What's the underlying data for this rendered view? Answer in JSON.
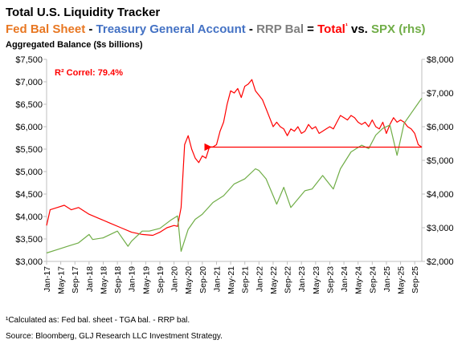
{
  "header": {
    "title": "Total U.S. Liquidity Tracker",
    "subtitle_segments": [
      {
        "text": "Fed Bal Sheet",
        "color": "#E87722"
      },
      {
        "text": " - ",
        "color": "#000000"
      },
      {
        "text": "Treasury General Account",
        "color": "#4472C4"
      },
      {
        "text": " - ",
        "color": "#000000"
      },
      {
        "text": "RRP Bal",
        "color": "#7F7F7F"
      },
      {
        "text": " = ",
        "color": "#000000"
      },
      {
        "text": "Total",
        "color": "#FF0000"
      },
      {
        "text": "¹",
        "color": "#FF0000"
      },
      {
        "text": " vs. ",
        "color": "#000000"
      },
      {
        "text": "SPX (rhs)",
        "color": "#70AD47"
      }
    ],
    "axis_caption": "Aggregated Balance ($s billions)"
  },
  "footnotes": {
    "calc": "¹Calculated as: Fed bal. sheet - TGA bal. - RRP bal.",
    "source": "Source: Bloomberg, GLJ Research LLC Investment Strategy."
  },
  "chart_data": {
    "type": "line",
    "x_tick_labels": [
      "Jan-17",
      "May-17",
      "Sep-17",
      "Jan-18",
      "May-18",
      "Sep-18",
      "Jan-19",
      "May-19",
      "Sep-19",
      "Jan-20",
      "May-20",
      "Sep-20",
      "Jan-21",
      "May-21",
      "Sep-21",
      "Jan-22",
      "May-22",
      "Sep-22",
      "Jan-23",
      "May-23",
      "Sep-23",
      "Jan-24",
      "May-24",
      "Sep-24",
      "Jan-25",
      "May-25",
      "Sep-25"
    ],
    "y_left": {
      "min": 3000,
      "max": 7500,
      "step": 500,
      "tick_labels": [
        "$3,000",
        "$3,500",
        "$4,000",
        "$4,500",
        "$5,000",
        "$5,500",
        "$6,000",
        "$6,500",
        "$7,000",
        "$7,500"
      ]
    },
    "y_right": {
      "min": 2000,
      "max": 8000,
      "step": 1000,
      "tick_labels": [
        "$2,000",
        "$3,000",
        "$4,000",
        "$5,000",
        "$6,000",
        "$7,000",
        "$8,000"
      ]
    },
    "annotation": {
      "text": "R² Correl: 79.4%",
      "color": "#FF0000"
    },
    "reference_arrow": {
      "from_date": "Nov-25",
      "to_date": "Nov-20",
      "y_left_value": 5545,
      "color": "#FF0000"
    },
    "series": [
      {
        "axis": "left",
        "color": "#FF0000",
        "points": [
          [
            "Jan-17",
            3800
          ],
          [
            "Feb-17",
            4150
          ],
          [
            "Apr-17",
            4200
          ],
          [
            "Jun-17",
            4250
          ],
          [
            "Aug-17",
            4150
          ],
          [
            "Oct-17",
            4200
          ],
          [
            "Jan-18",
            4050
          ],
          [
            "Apr-18",
            3950
          ],
          [
            "Jul-18",
            3850
          ],
          [
            "Oct-18",
            3750
          ],
          [
            "Jan-19",
            3650
          ],
          [
            "Apr-19",
            3600
          ],
          [
            "Jul-19",
            3580
          ],
          [
            "Sep-19",
            3650
          ],
          [
            "Nov-19",
            3750
          ],
          [
            "Jan-20",
            3800
          ],
          [
            "Feb-20",
            3780
          ],
          [
            "Mar-20",
            4200
          ],
          [
            "Apr-20",
            5600
          ],
          [
            "May-20",
            5800
          ],
          [
            "Jun-20",
            5500
          ],
          [
            "Jul-20",
            5300
          ],
          [
            "Aug-20",
            5200
          ],
          [
            "Sep-20",
            5350
          ],
          [
            "Oct-20",
            5300
          ],
          [
            "Nov-20",
            5550
          ],
          [
            "Dec-20",
            5550
          ],
          [
            "Jan-21",
            5600
          ],
          [
            "Feb-21",
            5900
          ],
          [
            "Mar-21",
            6100
          ],
          [
            "Apr-21",
            6500
          ],
          [
            "May-21",
            6800
          ],
          [
            "Jun-21",
            6750
          ],
          [
            "Jul-21",
            6850
          ],
          [
            "Aug-21",
            6650
          ],
          [
            "Sep-21",
            6900
          ],
          [
            "Oct-21",
            6950
          ],
          [
            "Nov-21",
            7050
          ],
          [
            "Dec-21",
            6800
          ],
          [
            "Jan-22",
            6700
          ],
          [
            "Feb-22",
            6600
          ],
          [
            "Mar-22",
            6400
          ],
          [
            "Apr-22",
            6200
          ],
          [
            "May-22",
            6000
          ],
          [
            "Jun-22",
            6100
          ],
          [
            "Jul-22",
            6000
          ],
          [
            "Aug-22",
            5950
          ],
          [
            "Sep-22",
            5800
          ],
          [
            "Oct-22",
            5950
          ],
          [
            "Nov-22",
            5900
          ],
          [
            "Dec-22",
            6000
          ],
          [
            "Jan-23",
            5850
          ],
          [
            "Feb-23",
            5900
          ],
          [
            "Mar-23",
            6050
          ],
          [
            "Apr-23",
            5950
          ],
          [
            "May-23",
            6000
          ],
          [
            "Jun-23",
            5850
          ],
          [
            "Jul-23",
            5900
          ],
          [
            "Aug-23",
            5950
          ],
          [
            "Sep-23",
            6000
          ],
          [
            "Oct-23",
            5950
          ],
          [
            "Nov-23",
            6100
          ],
          [
            "Dec-23",
            6250
          ],
          [
            "Jan-24",
            6200
          ],
          [
            "Feb-24",
            6150
          ],
          [
            "Mar-24",
            6250
          ],
          [
            "Apr-24",
            6200
          ],
          [
            "May-24",
            6100
          ],
          [
            "Jun-24",
            6050
          ],
          [
            "Jul-24",
            6100
          ],
          [
            "Aug-24",
            6000
          ],
          [
            "Sep-24",
            6150
          ],
          [
            "Oct-24",
            6000
          ],
          [
            "Nov-24",
            5950
          ],
          [
            "Dec-24",
            6100
          ],
          [
            "Jan-25",
            5850
          ],
          [
            "Feb-25",
            6050
          ],
          [
            "Mar-25",
            6200
          ],
          [
            "Apr-25",
            6100
          ],
          [
            "May-25",
            6150
          ],
          [
            "Jun-25",
            6100
          ],
          [
            "Jul-25",
            6000
          ],
          [
            "Aug-25",
            5950
          ],
          [
            "Sep-25",
            5850
          ],
          [
            "Oct-25",
            5600
          ],
          [
            "Nov-25",
            5545
          ]
        ]
      },
      {
        "axis": "right",
        "color": "#70AD47",
        "points": [
          [
            "Jan-17",
            2250
          ],
          [
            "Apr-17",
            2350
          ],
          [
            "Jul-17",
            2450
          ],
          [
            "Oct-17",
            2550
          ],
          [
            "Jan-18",
            2800
          ],
          [
            "Feb-18",
            2650
          ],
          [
            "May-18",
            2700
          ],
          [
            "Sep-18",
            2900
          ],
          [
            "Dec-18",
            2450
          ],
          [
            "Jan-19",
            2600
          ],
          [
            "Apr-19",
            2900
          ],
          [
            "Jun-19",
            2900
          ],
          [
            "Sep-19",
            2980
          ],
          [
            "Dec-19",
            3220
          ],
          [
            "Feb-20",
            3350
          ],
          [
            "Mar-20",
            2300
          ],
          [
            "May-20",
            2950
          ],
          [
            "Jul-20",
            3250
          ],
          [
            "Sep-20",
            3400
          ],
          [
            "Dec-20",
            3750
          ],
          [
            "Mar-21",
            3950
          ],
          [
            "Jun-21",
            4300
          ],
          [
            "Sep-21",
            4450
          ],
          [
            "Dec-21",
            4750
          ],
          [
            "Jan-22",
            4700
          ],
          [
            "Mar-22",
            4450
          ],
          [
            "Jun-22",
            3700
          ],
          [
            "Aug-22",
            4200
          ],
          [
            "Oct-22",
            3600
          ],
          [
            "Dec-22",
            3850
          ],
          [
            "Feb-23",
            4100
          ],
          [
            "Apr-23",
            4150
          ],
          [
            "Jul-23",
            4550
          ],
          [
            "Oct-23",
            4150
          ],
          [
            "Dec-23",
            4750
          ],
          [
            "Mar-24",
            5250
          ],
          [
            "Jun-24",
            5450
          ],
          [
            "Aug-24",
            5350
          ],
          [
            "Oct-24",
            5750
          ],
          [
            "Dec-24",
            5950
          ],
          [
            "Feb-25",
            6050
          ],
          [
            "Apr-25",
            5150
          ],
          [
            "Jun-25",
            6100
          ],
          [
            "Aug-25",
            6400
          ],
          [
            "Oct-25",
            6700
          ],
          [
            "Nov-25",
            6850
          ]
        ]
      }
    ]
  }
}
